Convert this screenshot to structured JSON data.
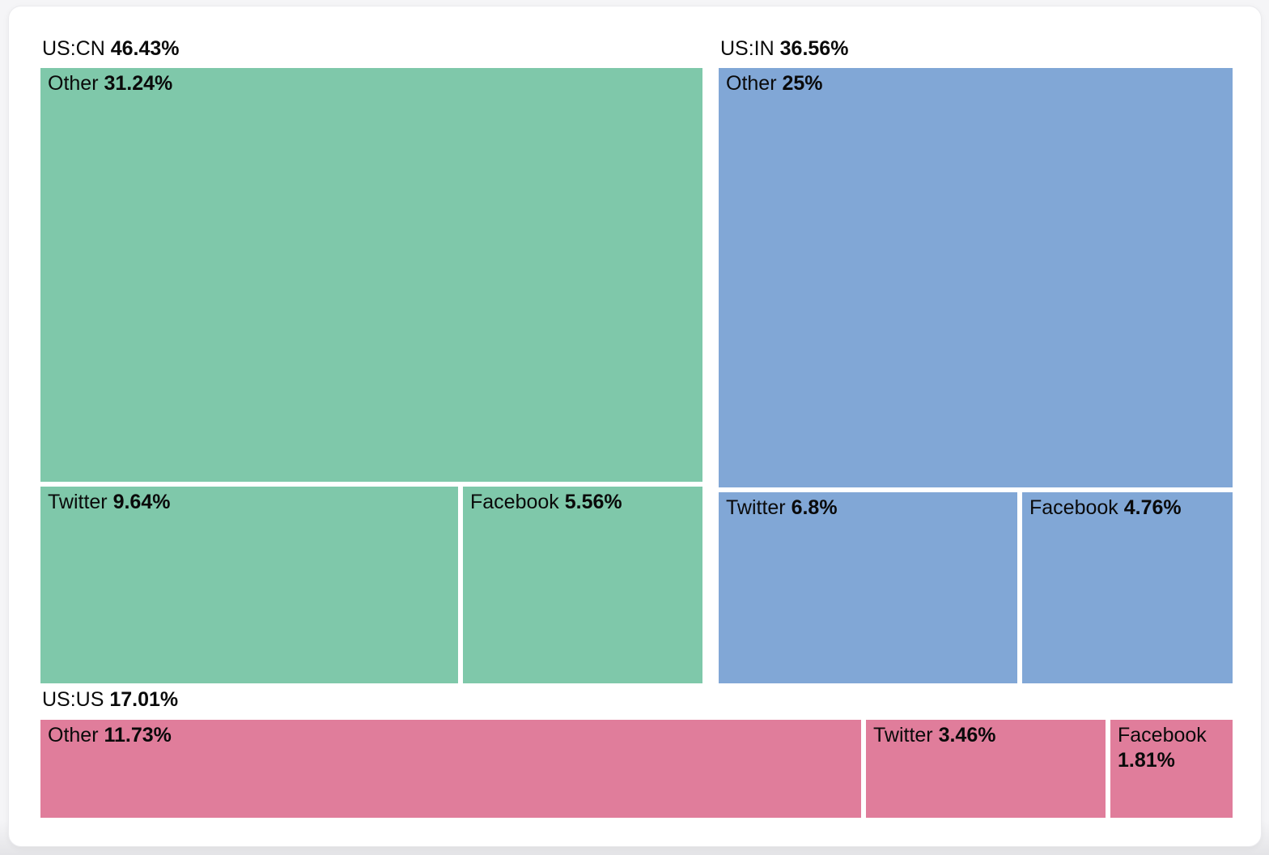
{
  "chart_data": {
    "type": "treemap",
    "unit": "%",
    "legend_position": "none",
    "groups": [
      {
        "name": "US:CN",
        "value": 46.43,
        "value_label": "46.43%",
        "color": "#7fc8aa",
        "children": [
          {
            "name": "Other",
            "value": 31.24,
            "value_label": "31.24%"
          },
          {
            "name": "Twitter",
            "value": 9.64,
            "value_label": "9.64%"
          },
          {
            "name": "Facebook",
            "value": 5.56,
            "value_label": "5.56%"
          }
        ]
      },
      {
        "name": "US:IN",
        "value": 36.56,
        "value_label": "36.56%",
        "color": "#81a7d6",
        "children": [
          {
            "name": "Other",
            "value": 25,
            "value_label": "25%"
          },
          {
            "name": "Twitter",
            "value": 6.8,
            "value_label": "6.8%"
          },
          {
            "name": "Facebook",
            "value": 4.76,
            "value_label": "4.76%"
          }
        ]
      },
      {
        "name": "US:US",
        "value": 17.01,
        "value_label": "17.01%",
        "color": "#e07d9b",
        "children": [
          {
            "name": "Other",
            "value": 11.73,
            "value_label": "11.73%"
          },
          {
            "name": "Twitter",
            "value": 3.46,
            "value_label": "3.46%"
          },
          {
            "name": "Facebook",
            "value": 1.81,
            "value_label": "1.81%"
          }
        ]
      }
    ],
    "colors": {
      "page_background": "#f5f5f7",
      "card_background": "#ffffff",
      "text": "#0a0a0a",
      "gap": "#ffffff"
    }
  }
}
